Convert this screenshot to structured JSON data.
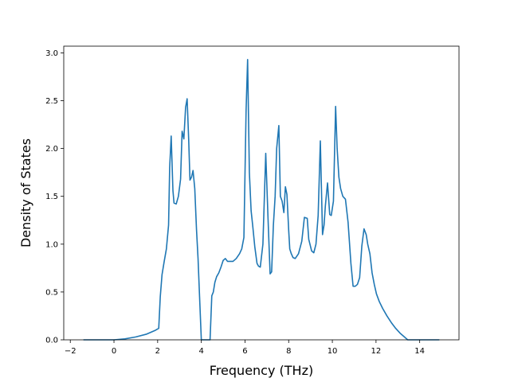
{
  "chart_data": {
    "type": "line",
    "title": "",
    "xlabel": "Frequency (THz)",
    "ylabel": "Density of States",
    "xlim": [
      -2.3,
      15.8
    ],
    "ylim": [
      0.0,
      3.07
    ],
    "xticks": [
      -2,
      0,
      2,
      4,
      6,
      8,
      10,
      12,
      14
    ],
    "xtick_labels": [
      "−2",
      "0",
      "2",
      "4",
      "6",
      "8",
      "10",
      "12",
      "14"
    ],
    "yticks": [
      0.0,
      0.5,
      1.0,
      1.5,
      2.0,
      2.5,
      3.0
    ],
    "ytick_labels": [
      "0.0",
      "0.5",
      "1.0",
      "1.5",
      "2.0",
      "2.5",
      "3.0"
    ],
    "grid": false,
    "legend": "none",
    "series": [
      {
        "color": "#1f77b4",
        "x": [
          -1.4,
          0.0,
          0.5,
          1.0,
          1.5,
          1.9,
          2.05,
          2.12,
          2.2,
          2.3,
          2.4,
          2.5,
          2.55,
          2.62,
          2.7,
          2.75,
          2.85,
          2.95,
          3.05,
          3.12,
          3.2,
          3.28,
          3.35,
          3.42,
          3.48,
          3.55,
          3.62,
          3.7,
          3.78,
          3.85,
          3.92,
          4.0,
          4.1,
          4.2,
          4.3,
          4.4,
          4.48,
          4.55,
          4.62,
          4.7,
          4.8,
          4.9,
          5.0,
          5.1,
          5.2,
          5.3,
          5.45,
          5.6,
          5.75,
          5.85,
          5.95,
          6.05,
          6.12,
          6.2,
          6.28,
          6.35,
          6.45,
          6.55,
          6.62,
          6.7,
          6.82,
          6.95,
          7.05,
          7.15,
          7.22,
          7.3,
          7.38,
          7.45,
          7.55,
          7.62,
          7.7,
          7.78,
          7.85,
          7.92,
          8.0,
          8.05,
          8.12,
          8.2,
          8.3,
          8.45,
          8.6,
          8.72,
          8.85,
          8.92,
          9.05,
          9.15,
          9.25,
          9.35,
          9.45,
          9.55,
          9.62,
          9.68,
          9.78,
          9.88,
          9.95,
          10.05,
          10.15,
          10.22,
          10.3,
          10.38,
          10.48,
          10.6,
          10.72,
          10.85,
          10.95,
          11.05,
          11.15,
          11.25,
          11.35,
          11.45,
          11.55,
          11.62,
          11.72,
          11.82,
          11.92,
          12.02,
          12.15,
          12.3,
          12.5,
          12.7,
          12.9,
          13.1,
          13.3,
          13.45,
          13.55,
          13.62,
          14.0,
          14.5,
          14.9
        ],
        "y": [
          0.0,
          0.0,
          0.01,
          0.03,
          0.06,
          0.1,
          0.12,
          0.45,
          0.68,
          0.82,
          0.95,
          1.2,
          1.8,
          2.13,
          1.56,
          1.43,
          1.42,
          1.5,
          1.68,
          2.18,
          2.1,
          2.43,
          2.52,
          2.1,
          1.67,
          1.7,
          1.77,
          1.58,
          1.15,
          0.85,
          0.45,
          0.0,
          0.0,
          0.0,
          0.0,
          0.0,
          0.46,
          0.5,
          0.6,
          0.66,
          0.7,
          0.76,
          0.83,
          0.85,
          0.82,
          0.82,
          0.82,
          0.85,
          0.9,
          0.95,
          1.07,
          2.4,
          2.93,
          1.75,
          1.35,
          1.2,
          0.97,
          0.8,
          0.77,
          0.76,
          1.0,
          1.95,
          1.3,
          0.69,
          0.71,
          1.2,
          1.5,
          2.0,
          2.24,
          1.5,
          1.45,
          1.33,
          1.6,
          1.52,
          1.15,
          0.95,
          0.9,
          0.86,
          0.85,
          0.9,
          1.03,
          1.28,
          1.27,
          1.05,
          0.93,
          0.91,
          1.0,
          1.3,
          2.08,
          1.1,
          1.2,
          1.4,
          1.64,
          1.31,
          1.3,
          1.45,
          2.44,
          2.0,
          1.7,
          1.58,
          1.5,
          1.47,
          1.23,
          0.8,
          0.56,
          0.56,
          0.58,
          0.65,
          0.98,
          1.16,
          1.1,
          1.0,
          0.9,
          0.7,
          0.58,
          0.48,
          0.4,
          0.33,
          0.25,
          0.18,
          0.12,
          0.07,
          0.03,
          0.0,
          0.0,
          0.0,
          0.0,
          0.0,
          0.0
        ]
      }
    ]
  }
}
